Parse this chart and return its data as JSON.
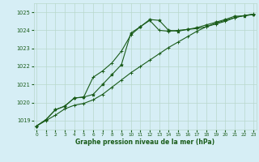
{
  "title": "Graphe pression niveau de la mer (hPa)",
  "background_color": "#d6eef5",
  "grid_color": "#b8d8cc",
  "line_color_1": "#1a5c1a",
  "line_color_2": "#1a5c1a",
  "line_color_3": "#1a5c1a",
  "xlim": [
    -0.3,
    23.3
  ],
  "ylim": [
    1018.5,
    1025.5
  ],
  "yticks": [
    1019,
    1020,
    1021,
    1022,
    1023,
    1024,
    1025
  ],
  "xticks": [
    0,
    1,
    2,
    3,
    4,
    5,
    6,
    7,
    8,
    9,
    10,
    11,
    12,
    13,
    14,
    15,
    16,
    17,
    18,
    19,
    20,
    21,
    22,
    23
  ],
  "series1_x": [
    0,
    1,
    2,
    3,
    4,
    5,
    6,
    7,
    8,
    9,
    10,
    11,
    12,
    13,
    14,
    15,
    16,
    17,
    18,
    19,
    20,
    21,
    22,
    23
  ],
  "series1_y": [
    1018.7,
    1019.0,
    1019.3,
    1019.65,
    1019.85,
    1019.95,
    1020.15,
    1020.45,
    1020.85,
    1021.25,
    1021.65,
    1022.0,
    1022.35,
    1022.7,
    1023.05,
    1023.35,
    1023.65,
    1023.95,
    1024.2,
    1024.4,
    1024.55,
    1024.7,
    1024.82,
    1024.9
  ],
  "series2_x": [
    0,
    1,
    2,
    3,
    4,
    5,
    6,
    7,
    8,
    9,
    10,
    11,
    12,
    13,
    14,
    15,
    16,
    17,
    18,
    19,
    20,
    21,
    22,
    23
  ],
  "series2_y": [
    1018.7,
    1019.05,
    1019.6,
    1019.8,
    1020.25,
    1020.3,
    1021.4,
    1021.75,
    1022.2,
    1022.85,
    1023.75,
    1024.2,
    1024.55,
    1024.0,
    1023.95,
    1024.0,
    1024.05,
    1024.1,
    1024.2,
    1024.35,
    1024.5,
    1024.7,
    1024.82,
    1024.88
  ],
  "series3_x": [
    0,
    1,
    2,
    3,
    4,
    5,
    6,
    7,
    8,
    9,
    10,
    11,
    12,
    13,
    14,
    15,
    16,
    17,
    18,
    19,
    20,
    21,
    22,
    23
  ],
  "series3_y": [
    1018.7,
    1019.05,
    1019.6,
    1019.8,
    1020.25,
    1020.3,
    1020.45,
    1021.0,
    1021.55,
    1022.1,
    1023.85,
    1024.2,
    1024.6,
    1024.55,
    1024.0,
    1023.95,
    1024.05,
    1024.15,
    1024.3,
    1024.45,
    1024.6,
    1024.78,
    1024.8,
    1024.88
  ]
}
